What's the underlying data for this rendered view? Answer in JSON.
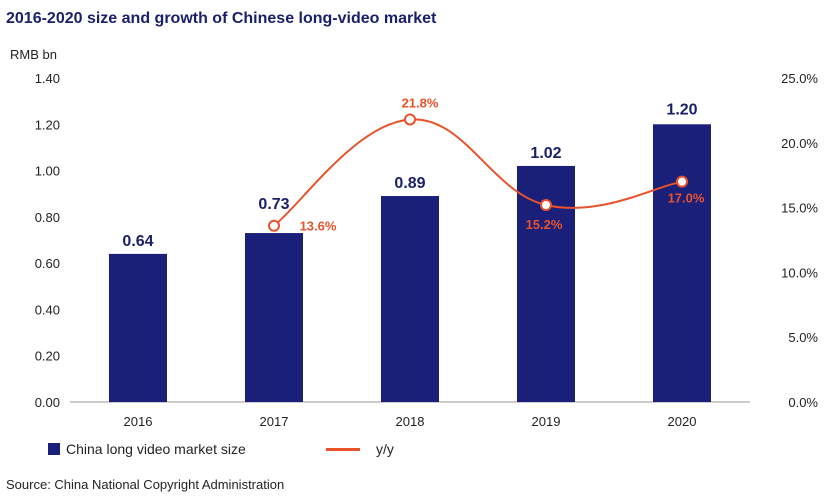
{
  "header": {
    "title": "2016-2020 size and growth of Chinese long-video market",
    "unit": "RMB bn"
  },
  "source": "Source: China National Copyright Administration",
  "colors": {
    "bar": "#1a1f7a",
    "line": "#e8532b",
    "axis": "#999999"
  },
  "chart_data": {
    "type": "bar",
    "categories": [
      "2016",
      "2017",
      "2018",
      "2019",
      "2020"
    ],
    "series": [
      {
        "name": "China long video market size",
        "type": "bar",
        "axis": "left",
        "values": [
          0.64,
          0.73,
          0.89,
          1.02,
          1.2
        ],
        "labels": [
          "0.64",
          "0.73",
          "0.89",
          "1.02",
          "1.20"
        ]
      },
      {
        "name": "y/y",
        "type": "line",
        "axis": "right",
        "values": [
          null,
          13.6,
          21.8,
          15.2,
          17.0
        ],
        "labels": [
          "",
          "13.6%",
          "21.8%",
          "15.2%",
          "17.0%"
        ]
      }
    ],
    "title": "2016-2020 size and growth of Chinese long-video market",
    "ylabel": "RMB bn",
    "ylim": [
      0,
      1.4
    ],
    "yticks": [
      "0.00",
      "0.20",
      "0.40",
      "0.60",
      "0.80",
      "1.00",
      "1.20",
      "1.40"
    ],
    "y2lim": [
      0,
      25
    ],
    "y2ticks": [
      "0.0%",
      "5.0%",
      "10.0%",
      "15.0%",
      "20.0%",
      "25.0%"
    ],
    "grid": false,
    "legend": "bottom"
  }
}
